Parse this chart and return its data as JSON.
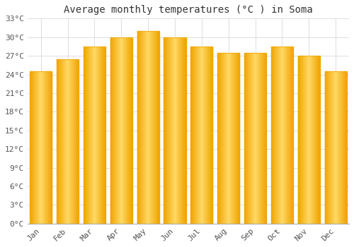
{
  "title": "Average monthly temperatures (°C ) in Soma",
  "months": [
    "Jan",
    "Feb",
    "Mar",
    "Apr",
    "May",
    "Jun",
    "Jul",
    "Aug",
    "Sep",
    "Oct",
    "Nov",
    "Dec"
  ],
  "values": [
    24.5,
    26.5,
    28.5,
    30.0,
    31.0,
    30.0,
    28.5,
    27.5,
    27.5,
    28.5,
    27.0,
    24.5
  ],
  "bar_color_center": "#FFD966",
  "bar_color_edge": "#F0A500",
  "background_color": "#ffffff",
  "grid_color": "#dddddd",
  "ylim": [
    0,
    33
  ],
  "yticks": [
    0,
    3,
    6,
    9,
    12,
    15,
    18,
    21,
    24,
    27,
    30,
    33
  ],
  "title_fontsize": 10,
  "tick_fontsize": 8,
  "bar_width": 0.82
}
